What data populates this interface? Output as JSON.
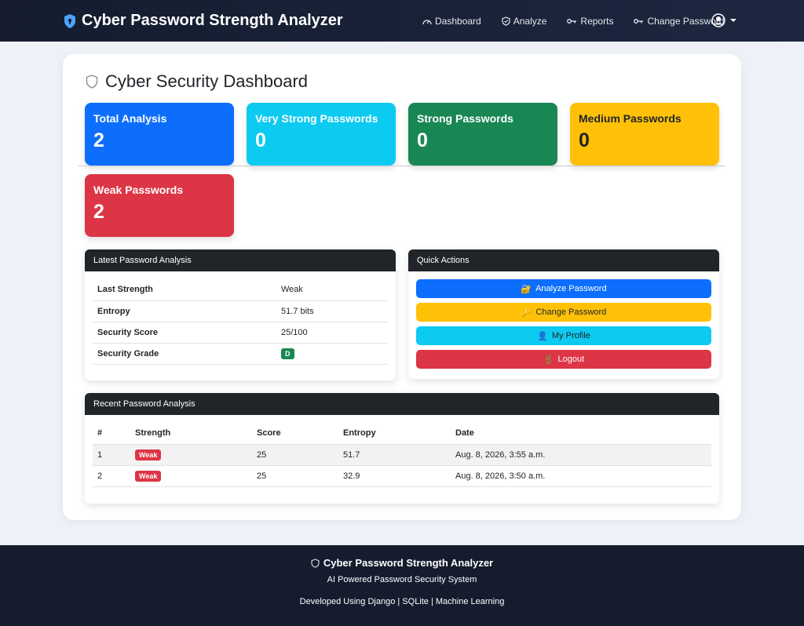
{
  "navbar": {
    "brand": "Cyber Password Strength Analyzer",
    "links": [
      {
        "label": "Dashboard",
        "icon": "speedometer-icon"
      },
      {
        "label": "Analyze",
        "icon": "shield-icon"
      },
      {
        "label": "Reports",
        "icon": "key-icon"
      },
      {
        "label": "Change Password",
        "icon": "key-icon"
      }
    ]
  },
  "dashboard": {
    "title": "Cyber Security Dashboard",
    "stats": [
      {
        "label": "Total Analysis",
        "value": "2",
        "color": "#0d6efd"
      },
      {
        "label": "Very Strong Passwords",
        "value": "0",
        "color": "#0dcaf0"
      },
      {
        "label": "Strong Passwords",
        "value": "0",
        "color": "#198754"
      },
      {
        "label": "Medium Passwords",
        "value": "0",
        "color": "#ffc107"
      },
      {
        "label": "Weak Passwords",
        "value": "2",
        "color": "#dc3545"
      }
    ]
  },
  "latest": {
    "header": "Latest Password Analysis",
    "rows": [
      {
        "key": "Last Strength",
        "value": "Weak"
      },
      {
        "key": "Entropy",
        "value": "51.7 bits"
      },
      {
        "key": "Security Score",
        "value": "25/100"
      },
      {
        "key": "Security Grade",
        "value": "D"
      }
    ]
  },
  "quick_actions": {
    "header": "Quick Actions",
    "buttons": [
      {
        "label": "Analyze Password",
        "icon": "🔐",
        "color": "#0d6efd"
      },
      {
        "label": "Change Password",
        "icon": "🔑",
        "color": "#ffc107"
      },
      {
        "label": "My Profile",
        "icon": "👤",
        "color": "#0dcaf0"
      },
      {
        "label": "Logout",
        "icon": "🚪",
        "color": "#dc3545"
      }
    ]
  },
  "recent": {
    "header": "Recent Password Analysis",
    "columns": [
      "#",
      "Strength",
      "Score",
      "Entropy",
      "Date"
    ],
    "rows": [
      {
        "num": "1",
        "strength": "Weak",
        "score": "25",
        "entropy": "51.7",
        "date": "Aug. 8, 2026, 3:55 a.m."
      },
      {
        "num": "2",
        "strength": "Weak",
        "score": "25",
        "entropy": "32.9",
        "date": "Aug. 8, 2026, 3:50 a.m."
      }
    ]
  },
  "footer": {
    "title": "Cyber Password Strength Analyzer",
    "subtitle": "AI Powered Password Security System",
    "developed": "Developed Using Django | SQLite | Machine Learning"
  }
}
